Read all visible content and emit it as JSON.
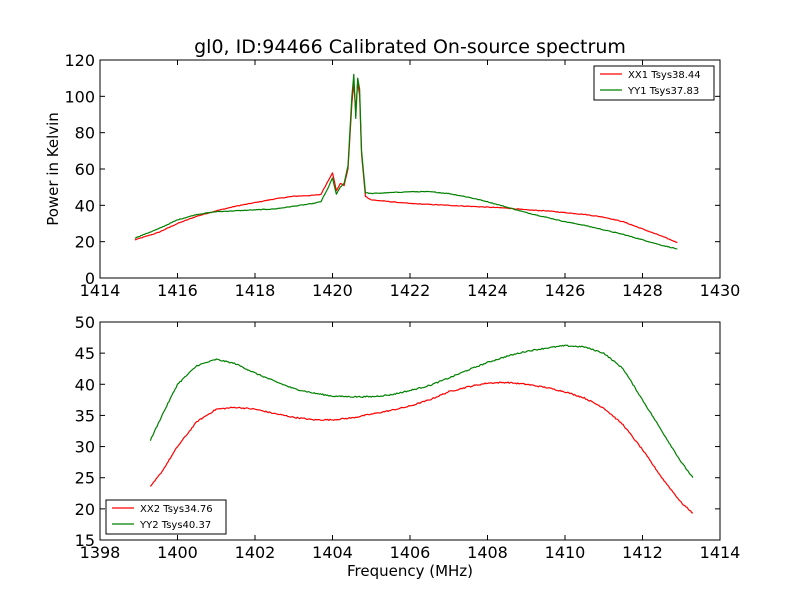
{
  "title": "gl0, ID:94466 Calibrated On-source spectrum",
  "chart_data": [
    {
      "type": "line",
      "ylabel": "Power in Kelvin",
      "xlabel": "",
      "xlim": [
        1414,
        1430
      ],
      "ylim": [
        0,
        120
      ],
      "xticks": [
        "1414",
        "1416",
        "1418",
        "1420",
        "1422",
        "1424",
        "1426",
        "1428",
        "1430"
      ],
      "yticks": [
        "0",
        "20",
        "40",
        "60",
        "80",
        "100",
        "120"
      ],
      "legend_position": "top-right",
      "grid": false,
      "series": [
        {
          "name": "XX1 Tsys38.44",
          "color": "#ff0000",
          "x": [
            1414.9,
            1415.5,
            1416.0,
            1416.5,
            1417.0,
            1417.5,
            1418.0,
            1418.5,
            1419.0,
            1419.5,
            1419.7,
            1419.85,
            1420.0,
            1420.1,
            1420.2,
            1420.3,
            1420.4,
            1420.5,
            1420.55,
            1420.6,
            1420.65,
            1420.7,
            1420.75,
            1420.85,
            1421.0,
            1421.5,
            1422.0,
            1422.5,
            1423.0,
            1423.5,
            1424.0,
            1424.5,
            1425.0,
            1425.5,
            1426.0,
            1426.5,
            1427.0,
            1427.5,
            1428.0,
            1428.5,
            1428.9
          ],
          "values": [
            21,
            25,
            30,
            34,
            37,
            39.5,
            41.5,
            43.5,
            45,
            45.5,
            46,
            52,
            58,
            48,
            52,
            51,
            60,
            96,
            107,
            92,
            108,
            100,
            68,
            45,
            43,
            42,
            41,
            40.5,
            40,
            39.5,
            39,
            38.5,
            37.5,
            37,
            36,
            35,
            33.5,
            31,
            27,
            23,
            19.5
          ]
        },
        {
          "name": "YY1 Tsys37.83",
          "color": "#008000",
          "x": [
            1414.9,
            1415.5,
            1416.0,
            1416.5,
            1417.0,
            1417.5,
            1418.0,
            1418.5,
            1419.0,
            1419.5,
            1419.7,
            1419.85,
            1420.0,
            1420.1,
            1420.2,
            1420.3,
            1420.4,
            1420.5,
            1420.55,
            1420.6,
            1420.65,
            1420.7,
            1420.75,
            1420.85,
            1421.0,
            1421.5,
            1422.0,
            1422.5,
            1423.0,
            1423.5,
            1424.0,
            1424.5,
            1425.0,
            1425.5,
            1426.0,
            1426.5,
            1427.0,
            1427.5,
            1428.0,
            1428.5,
            1428.9
          ],
          "values": [
            22,
            27,
            32,
            35,
            36.5,
            37,
            37.5,
            38,
            39.5,
            41,
            42,
            48,
            55,
            46,
            50,
            52,
            62,
            100,
            112,
            88,
            110,
            104,
            70,
            47,
            46.5,
            47,
            47.5,
            47.5,
            46.5,
            44.5,
            42,
            39,
            36,
            33.5,
            31,
            29,
            26.5,
            24,
            21,
            18,
            16
          ]
        }
      ]
    },
    {
      "type": "line",
      "ylabel": "",
      "xlabel": "Frequency (MHz)",
      "xlim": [
        1398,
        1414
      ],
      "ylim": [
        15,
        50
      ],
      "xticks": [
        "1398",
        "1400",
        "1402",
        "1404",
        "1406",
        "1408",
        "1410",
        "1412",
        "1414"
      ],
      "yticks": [
        "15",
        "20",
        "25",
        "30",
        "35",
        "40",
        "45",
        "50"
      ],
      "legend_position": "bottom-left",
      "grid": false,
      "series": [
        {
          "name": "XX2 Tsys34.76",
          "color": "#ff0000",
          "x": [
            1399.3,
            1399.6,
            1400.0,
            1400.5,
            1401.0,
            1401.5,
            1402.0,
            1402.5,
            1403.0,
            1403.5,
            1404.0,
            1404.5,
            1405.0,
            1405.5,
            1406.0,
            1406.5,
            1407.0,
            1407.5,
            1408.0,
            1408.5,
            1409.0,
            1409.5,
            1410.0,
            1410.5,
            1411.0,
            1411.5,
            1412.0,
            1412.5,
            1413.0,
            1413.3
          ],
          "values": [
            23.5,
            26,
            30,
            34,
            36,
            36.3,
            36,
            35.3,
            34.7,
            34.3,
            34.3,
            34.6,
            35.2,
            35.8,
            36.5,
            37.5,
            38.8,
            39.6,
            40.2,
            40.3,
            40,
            39.5,
            38.8,
            37.8,
            36.2,
            33.5,
            29.5,
            25,
            21,
            19.3
          ]
        },
        {
          "name": "YY2 Tsys40.37",
          "color": "#008000",
          "x": [
            1399.3,
            1399.6,
            1400.0,
            1400.5,
            1401.0,
            1401.5,
            1402.0,
            1402.5,
            1403.0,
            1403.5,
            1404.0,
            1404.5,
            1405.0,
            1405.5,
            1406.0,
            1406.5,
            1407.0,
            1407.5,
            1408.0,
            1408.5,
            1409.0,
            1409.5,
            1410.0,
            1410.5,
            1411.0,
            1411.5,
            1412.0,
            1412.5,
            1413.0,
            1413.3
          ],
          "values": [
            31,
            35,
            40,
            43,
            44,
            43.3,
            41.8,
            40.5,
            39.3,
            38.6,
            38.1,
            38,
            38,
            38.3,
            39,
            39.8,
            41,
            42.3,
            43.5,
            44.5,
            45.3,
            45.8,
            46.2,
            46,
            45,
            42.5,
            37.5,
            32.5,
            27.5,
            25
          ]
        }
      ]
    }
  ]
}
